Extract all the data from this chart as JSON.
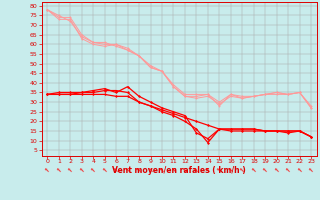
{
  "xlabel": "Vent moyen/en rafales ( km/h )",
  "bg_color": "#c8ecec",
  "grid_color": "#aaaaaa",
  "x_ticks": [
    0,
    1,
    2,
    3,
    4,
    5,
    6,
    7,
    8,
    9,
    10,
    11,
    12,
    13,
    14,
    15,
    16,
    17,
    18,
    19,
    20,
    21,
    22,
    23
  ],
  "y_ticks": [
    5,
    10,
    15,
    20,
    25,
    30,
    35,
    40,
    45,
    50,
    55,
    60,
    65,
    70,
    75,
    80
  ],
  "ylim": [
    2,
    82
  ],
  "xlim": [
    -0.5,
    23.5
  ],
  "line_dark1": [
    34,
    34,
    34,
    35,
    35,
    36,
    36,
    35,
    30,
    28,
    25,
    23,
    20,
    16,
    9,
    16,
    16,
    16,
    16,
    15,
    15,
    15,
    15,
    12
  ],
  "line_dark2": [
    34,
    34,
    34,
    34,
    34,
    34,
    33,
    33,
    30,
    28,
    26,
    24,
    22,
    20,
    18,
    16,
    15,
    15,
    15,
    15,
    15,
    15,
    15,
    12
  ],
  "line_dark3": [
    34,
    35,
    35,
    35,
    36,
    37,
    35,
    38,
    33,
    30,
    27,
    25,
    23,
    14,
    11,
    16,
    16,
    16,
    16,
    15,
    15,
    14,
    15,
    12
  ],
  "line_light1": [
    78,
    73,
    73,
    63,
    60,
    59,
    60,
    58,
    54,
    48,
    46,
    38,
    33,
    33,
    34,
    28,
    34,
    32,
    33,
    34,
    35,
    34,
    35,
    27
  ],
  "line_light2": [
    78,
    75,
    72,
    64,
    61,
    61,
    59,
    57,
    54,
    49,
    46,
    39,
    34,
    34,
    34,
    30,
    34,
    33,
    33,
    34,
    35,
    34,
    35,
    28
  ],
  "line_light3": [
    78,
    74,
    74,
    65,
    61,
    60,
    60,
    57,
    54,
    48,
    46,
    38,
    33,
    32,
    33,
    29,
    33,
    32,
    33,
    34,
    34,
    34,
    35,
    27
  ],
  "dark_color": "#ff0000",
  "light_color": "#ff9999",
  "axis_color": "#dd0000",
  "tick_fontsize": 4.5,
  "xlabel_fontsize": 5.5
}
